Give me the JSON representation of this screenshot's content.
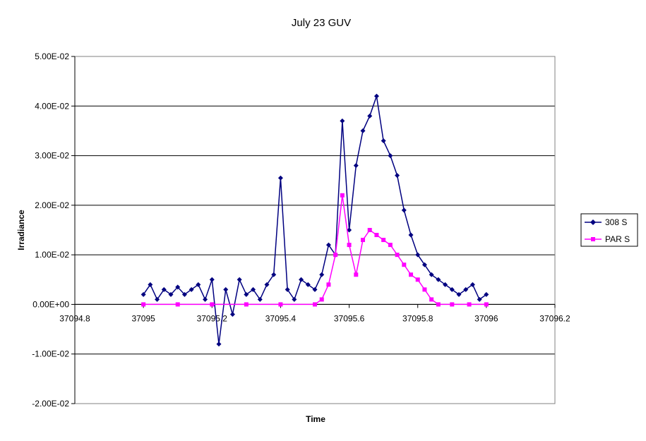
{
  "chart_data": {
    "type": "line",
    "title": "July 23 GUV",
    "xlabel": "Time",
    "ylabel": "Irradiance",
    "xlim": [
      37094.8,
      37096.2
    ],
    "ylim": [
      -0.02,
      0.05
    ],
    "x_ticks": [
      37094.8,
      37095,
      37095.2,
      37095.4,
      37095.6,
      37095.8,
      37096,
      37096.2
    ],
    "x_tick_labels": [
      "37094.8",
      "37095",
      "37095.2",
      "37095.4",
      "37095.6",
      "37095.8",
      "37096",
      "37096.2"
    ],
    "y_ticks": [
      -0.02,
      -0.01,
      0,
      0.01,
      0.02,
      0.03,
      0.04,
      0.05
    ],
    "y_tick_labels": [
      "-2.00E-02",
      "-1.00E-02",
      "0.00E+00",
      "1.00E-02",
      "2.00E-02",
      "3.00E-02",
      "4.00E-02",
      "5.00E-02"
    ],
    "grid": "horizontal",
    "legend_position": "right",
    "series": [
      {
        "name": "308 S",
        "color": "#000080",
        "marker": "diamond",
        "x": [
          37095,
          37095.02,
          37095.04,
          37095.06,
          37095.08,
          37095.1,
          37095.12,
          37095.14,
          37095.16,
          37095.18,
          37095.2,
          37095.22,
          37095.24,
          37095.26,
          37095.28,
          37095.3,
          37095.32,
          37095.34,
          37095.36,
          37095.38,
          37095.4,
          37095.42,
          37095.44,
          37095.46,
          37095.48,
          37095.5,
          37095.52,
          37095.54,
          37095.56,
          37095.58,
          37095.6,
          37095.62,
          37095.64,
          37095.66,
          37095.68,
          37095.7,
          37095.72,
          37095.74,
          37095.76,
          37095.78,
          37095.8,
          37095.82,
          37095.84,
          37095.86,
          37095.88,
          37095.9,
          37095.92,
          37095.94,
          37095.96,
          37095.98,
          37096
        ],
        "y": [
          0.002,
          0.004,
          0.001,
          0.003,
          0.002,
          0.0035,
          0.002,
          0.003,
          0.004,
          0.001,
          0.005,
          -0.008,
          0.003,
          -0.002,
          0.005,
          0.002,
          0.003,
          0.001,
          0.004,
          0.006,
          0.0255,
          0.003,
          0.001,
          0.005,
          0.004,
          0.003,
          0.006,
          0.012,
          0.01,
          0.037,
          0.015,
          0.028,
          0.035,
          0.038,
          0.042,
          0.033,
          0.03,
          0.026,
          0.019,
          0.014,
          0.01,
          0.008,
          0.006,
          0.005,
          0.004,
          0.003,
          0.002,
          0.003,
          0.004,
          0.001,
          0.002
        ]
      },
      {
        "name": "PAR S",
        "color": "#ff00ff",
        "marker": "square",
        "x": [
          37095,
          37095.1,
          37095.2,
          37095.3,
          37095.4,
          37095.5,
          37095.52,
          37095.54,
          37095.56,
          37095.58,
          37095.6,
          37095.62,
          37095.64,
          37095.66,
          37095.68,
          37095.7,
          37095.72,
          37095.74,
          37095.76,
          37095.78,
          37095.8,
          37095.82,
          37095.84,
          37095.86,
          37095.9,
          37095.95,
          37096
        ],
        "y": [
          0,
          0,
          0,
          0,
          0,
          0,
          0.001,
          0.004,
          0.01,
          0.022,
          0.012,
          0.006,
          0.013,
          0.015,
          0.014,
          0.013,
          0.012,
          0.01,
          0.008,
          0.006,
          0.005,
          0.003,
          0.001,
          0,
          0,
          0,
          0
        ]
      }
    ]
  }
}
